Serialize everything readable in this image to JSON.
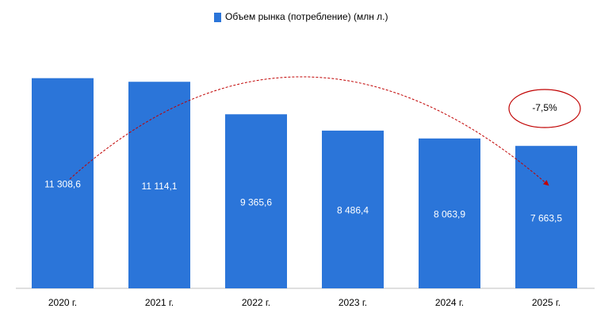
{
  "chart_data": {
    "type": "bar",
    "categories": [
      "2020 г.",
      "2021 г.",
      "2022 г.",
      "2023 г.",
      "2024 г.",
      "2025 г."
    ],
    "series": [
      {
        "name": "Объем рынка (потребление) (млн л.)",
        "color": "#2b75d9",
        "values": [
          11308.6,
          11114.1,
          9365.6,
          8486.4,
          8063.9,
          7663.5
        ],
        "value_labels": [
          "11 308,6",
          "11 114,1",
          "9 365,6",
          "8 486,4",
          "8 063,9",
          "7 663,5"
        ]
      }
    ],
    "ylim": [
      0,
      13000
    ],
    "annotation": "-7,5%"
  }
}
